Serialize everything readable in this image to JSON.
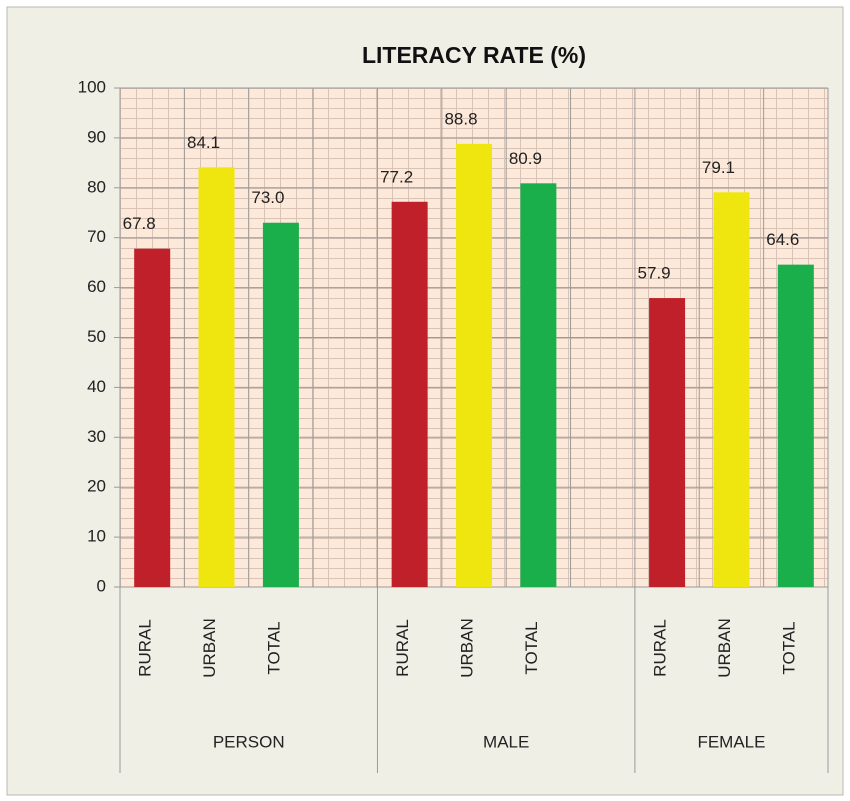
{
  "chart_data": {
    "type": "bar",
    "title": "LITERACY RATE (%)",
    "categories": [
      "RURAL",
      "URBAN",
      "TOTAL",
      null,
      "RURAL",
      "URBAN",
      "TOTAL",
      null,
      "RURAL",
      "URBAN",
      "TOTAL"
    ],
    "groups": [
      "PERSON",
      "MALE",
      "FEMALE"
    ],
    "values": [
      67.8,
      84.1,
      73.0,
      null,
      77.2,
      88.8,
      80.9,
      null,
      57.9,
      79.1,
      64.6
    ],
    "value_labels": [
      "67.8",
      "84.1",
      "73.0",
      null,
      "77.2",
      "88.8",
      "80.9",
      null,
      "57.9",
      "79.1",
      "64.6"
    ],
    "colors": [
      "#c0202a",
      "#f0e60f",
      "#1aaf4b",
      null,
      "#c0202a",
      "#f0e60f",
      "#1aaf4b",
      null,
      "#c0202a",
      "#f0e60f",
      "#1aaf4b"
    ],
    "ylim": [
      0,
      100
    ],
    "yticks": [
      0,
      10,
      20,
      30,
      40,
      50,
      60,
      70,
      80,
      90,
      100
    ],
    "grid": true
  }
}
